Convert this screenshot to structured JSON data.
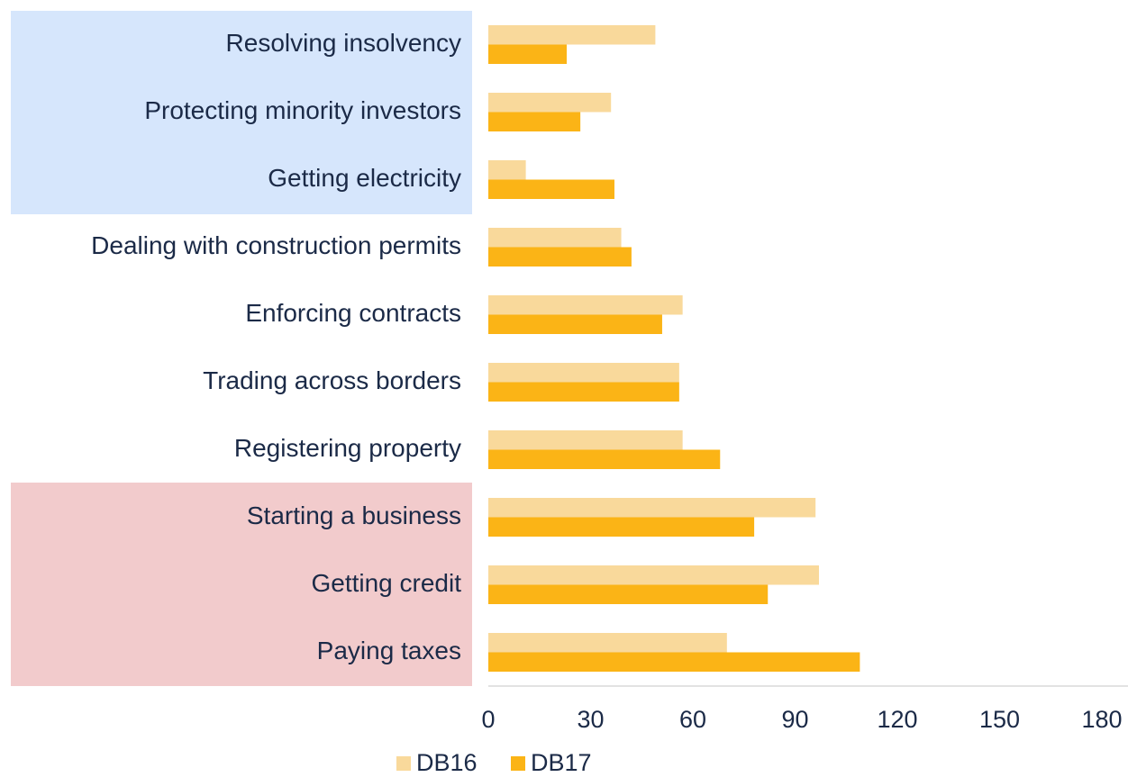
{
  "chart_data": {
    "type": "bar",
    "orientation": "horizontal",
    "categories": [
      "Resolving insolvency",
      "Protecting minority investors",
      "Getting electricity",
      "Dealing with construction permits",
      "Enforcing contracts",
      "Trading across borders",
      "Registering property",
      "Starting a business",
      "Getting credit",
      "Paying taxes"
    ],
    "series": [
      {
        "name": "DB16",
        "color": "#f9d99b",
        "values": [
          49,
          36,
          11,
          39,
          57,
          56,
          57,
          96,
          97,
          70
        ]
      },
      {
        "name": "DB17",
        "color": "#fbb416",
        "values": [
          23,
          27,
          37,
          42,
          51,
          56,
          68,
          78,
          82,
          109
        ]
      }
    ],
    "xlim": [
      0,
      180
    ],
    "xticks": [
      0,
      30,
      60,
      90,
      120,
      150,
      180
    ],
    "grid": false,
    "legend": "bottom"
  }
}
